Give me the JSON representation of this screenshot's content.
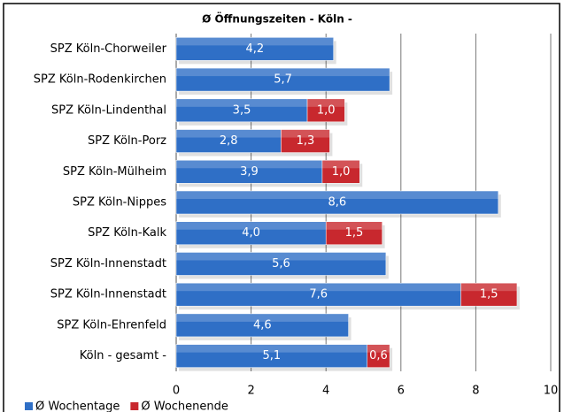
{
  "chart_data": {
    "type": "bar",
    "orientation": "horizontal",
    "stacked": true,
    "title": "Ø Öffnungszeiten - Köln -",
    "categories": [
      "SPZ Köln-Chorweiler",
      "SPZ Köln-Rodenkirchen",
      "SPZ Köln-Lindenthal",
      "SPZ Köln-Porz",
      "SPZ Köln-Mülheim",
      "SPZ Köln-Nippes",
      "SPZ Köln-Kalk",
      "SPZ Köln-Innenstadt",
      "SPZ Köln-Innenstadt",
      "SPZ Köln-Ehrenfeld",
      "Köln - gesamt -"
    ],
    "series": [
      {
        "name": "Ø Wochentage",
        "color": "#2f6fc6",
        "values": [
          4.2,
          5.7,
          3.5,
          2.8,
          3.9,
          8.6,
          4.0,
          5.6,
          7.6,
          4.6,
          5.1
        ],
        "value_labels": [
          "4,2",
          "5,7",
          "3,5",
          "2,8",
          "3,9",
          "8,6",
          "4,0",
          "5,6",
          "7,6",
          "4,6",
          "5,1"
        ]
      },
      {
        "name": "Ø Wochenende",
        "color": "#c8282e",
        "values": [
          null,
          null,
          1.0,
          1.3,
          1.0,
          null,
          1.5,
          null,
          1.5,
          null,
          0.6
        ],
        "value_labels": [
          null,
          null,
          "1,0",
          "1,3",
          "1,0",
          null,
          "1,5",
          null,
          "1,5",
          null,
          "0,6"
        ]
      }
    ],
    "xlim": [
      0,
      10
    ],
    "xticks": [
      0,
      2,
      4,
      6,
      8,
      10
    ],
    "grid": true,
    "legend": "bottom-left"
  }
}
